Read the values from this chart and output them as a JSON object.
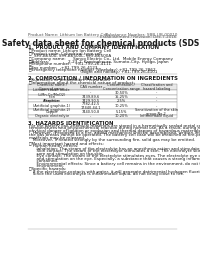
{
  "title": "Safety data sheet for chemical products (SDS)",
  "header_left": "Product Name: Lithium Ion Battery Cell",
  "header_right_line1": "Substance Number: SBR-LIB-00010",
  "header_right_line2": "Establishment / Revision: Dec.7.2016",
  "section1_title": "1. PRODUCT AND COMPANY IDENTIFICATION",
  "section1_lines": [
    "・Product name: Lithium Ion Battery Cell",
    "・Product code: Cylindrical-type cell",
    "    SHY-B6500, SHY-B6500L, SHY-B6500A",
    "・Company name:      Sanyo Electric Co., Ltd.  Mobile Energy Company",
    "・Address:               2-23-1  Kaminakaura, Sumoto-City, Hyogo, Japan",
    "・Telephone number:   +81-799-26-4111",
    "・Fax number:   +81-799-26-4123",
    "・Emergency telephone number (Weekday) +81-799-26-2862",
    "                                         (Night and holiday) +81-799-26-4101"
  ],
  "section2_title": "2. COMPOSITION / INFORMATION ON INGREDIENTS",
  "section2_intro": "・Substance or preparation: Preparation",
  "section2_sub": "・Information about the chemical nature of product:",
  "table_headers": [
    "Chemical name /\nGeneral name",
    "CAS number",
    "Concentration /\nConcentration range",
    "Classification and\nhazard labeling"
  ],
  "table_rows": [
    [
      "Lithium cobalt oxide\n(LiMn-Co/MnO2)",
      "-",
      "30-50%",
      "-"
    ],
    [
      "Iron",
      "7439-89-6",
      "15-25%",
      "-"
    ],
    [
      "Aluminum",
      "7429-90-5",
      "2-5%",
      "-"
    ],
    [
      "Graphite\n(Artificial graphite-1)\n(Artificial graphite-2)",
      "7782-42-5\n17440-44-1",
      "10-25%",
      "-"
    ],
    [
      "Copper",
      "7440-50-8",
      "5-15%",
      "Sensitization of the skin\ngroup No.2"
    ],
    [
      "Organic electrolyte",
      "-",
      "10-20%",
      "Inflammable liquid"
    ]
  ],
  "section3_title": "3. HAZARDS IDENTIFICATION",
  "section3_para1": [
    "For the battery cell, chemical materials are stored in a hermetically sealed metal case, designed to withstand",
    "temperatures and physiochemical reaction during normal use. As a result, during normal use, there is no",
    "physical danger of ignition or explosion and thermal danger of hazardous materials leakage.",
    "   However, if exposed to a fire, added mechanical shocks, decomposed, written-internal wires by misuse,",
    "the gas breaks cannot be operated. The battery cell case will be breached at fire-patterns. Hazardous",
    "materials may be released.",
    "   Moreover, if heated strongly by the surrounding fire, solid gas may be emitted."
  ],
  "section3_bullet1": "・Most important hazard and effects:",
  "section3_human": "   Human health effects:",
  "section3_human_lines": [
    "      Inhalation: The steam of the electrolyte has an anesthesia action and stimulates a respiratory tract.",
    "      Skin contact: The steam of the electrolyte stimulates a skin. The electrolyte skin contact causes a",
    "      sore and stimulation on the skin.",
    "      Eye contact: The steam of the electrolyte stimulates eyes. The electrolyte eye contact causes a sore",
    "      and stimulation on the eye. Especially, a substance that causes a strong inflammation of the eyes is",
    "      contained.",
    "      Environmental effects: Since a battery cell remains in the environment, do not throw out it into the",
    "      environment."
  ],
  "section3_bullet2": "・Specific hazards:",
  "section3_specific": [
    "   If the electrolyte contacts with water, it will generate detrimental hydrogen fluoride.",
    "   Since the used electrolyte is inflammable liquid, do not bring close to fire."
  ],
  "bg_color": "#ffffff",
  "text_color": "#1a1a1a",
  "line_color": "#999999",
  "table_border_color": "#888888",
  "table_header_bg": "#e8e8e8"
}
